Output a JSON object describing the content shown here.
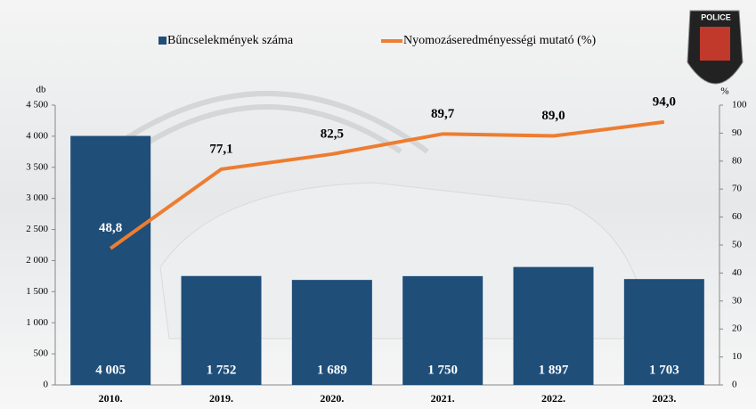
{
  "chart_data": {
    "type": "bar_line",
    "categories": [
      "2010.",
      "2019.",
      "2020.",
      "2021.",
      "2022.",
      "2023."
    ],
    "series": [
      {
        "name": "Bűncselekmények száma",
        "type": "bar",
        "color": "#1f4e79",
        "values": [
          4005,
          1752,
          1689,
          1750,
          1897,
          1703
        ],
        "value_labels": [
          "4 005",
          "1 752",
          "1 689",
          "1 750",
          "1 897",
          "1 703"
        ]
      },
      {
        "name": "Nyomozáseredményességi mutató (%)",
        "type": "line",
        "axis": "y2",
        "color": "#ed7d31",
        "values": [
          48.8,
          77.1,
          82.5,
          89.7,
          89.0,
          94.0
        ],
        "value_labels": [
          "48,8",
          "77,1",
          "82,5",
          "89,7",
          "89,0",
          "94,0"
        ]
      }
    ],
    "y_unit": "db",
    "y2_unit": "%",
    "ylim": [
      0,
      4500
    ],
    "yticks": [
      0,
      500,
      {
        "value": 1000,
        "label": "1 000"
      },
      {
        "value": 1500,
        "label": "1 500"
      },
      {
        "value": 2000,
        "label": "2 000"
      },
      {
        "value": 2500,
        "label": "2 500"
      },
      {
        "value": 3000,
        "label": "3 000"
      },
      {
        "value": 3500,
        "label": "3 500"
      },
      {
        "value": 4000,
        "label": "4 000"
      },
      {
        "value": 4500,
        "label": "4 500"
      }
    ],
    "y2lim": [
      0,
      100
    ],
    "y2ticks": [
      0,
      10,
      20,
      30,
      40,
      50,
      60,
      70,
      80,
      90,
      100
    ],
    "badge": "POLICE"
  }
}
